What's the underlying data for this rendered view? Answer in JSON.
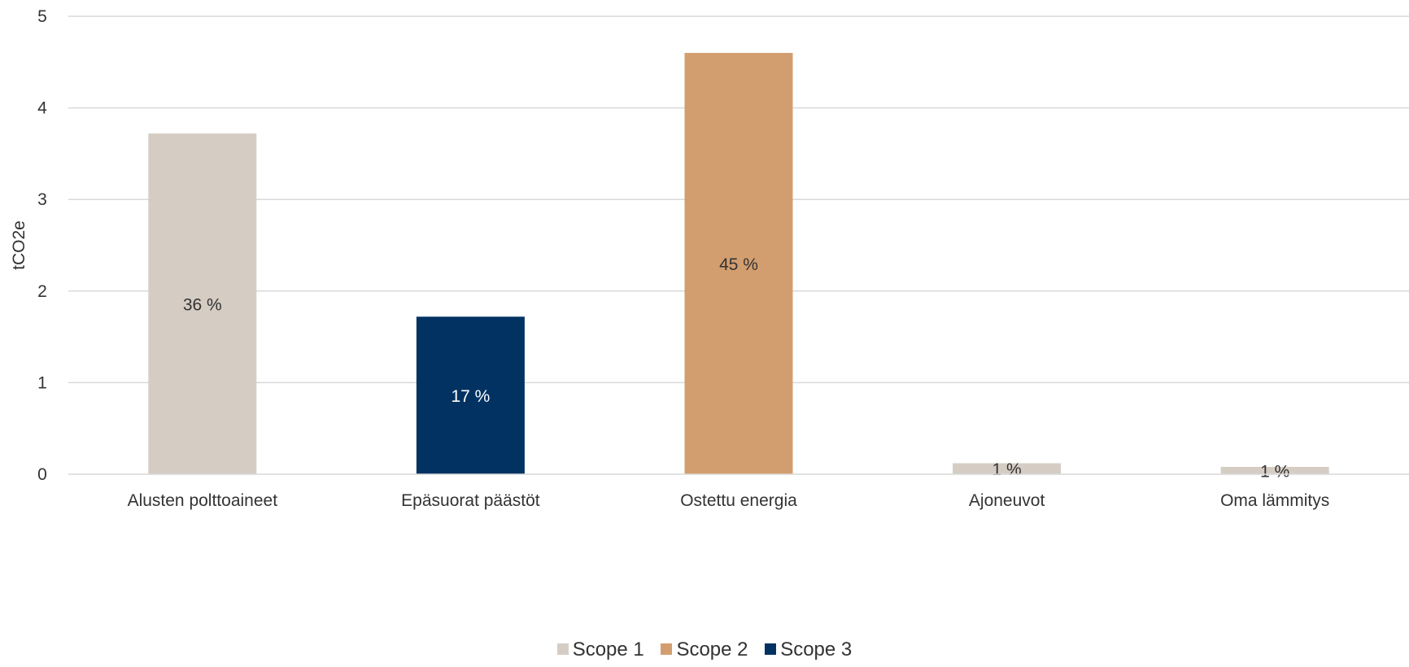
{
  "chart_data": {
    "type": "bar",
    "ylabel": "tCO2e",
    "ylim": [
      0,
      5
    ],
    "yticks": [
      "0",
      "1",
      "2",
      "3",
      "4",
      "5"
    ],
    "grid": true,
    "legend_position": "bottom",
    "categories": [
      "Alusten polttoaineet",
      "Epäsuorat päästöt",
      "Ostettu energia",
      "Ajoneuvot",
      "Oma lämmitys"
    ],
    "values": [
      3.72,
      1.72,
      4.6,
      0.12,
      0.08
    ],
    "data_labels": [
      "36 %",
      "17 %",
      "45 %",
      "1 %",
      "1 %"
    ],
    "bar_scope": [
      "Scope 1",
      "Scope 3",
      "Scope 2",
      "Scope 1",
      "Scope 1"
    ],
    "legend": [
      {
        "name": "Scope 1",
        "color": "#d5cdc4"
      },
      {
        "name": "Scope 2",
        "color": "#d39e6f"
      },
      {
        "name": "Scope 3",
        "color": "#023262"
      }
    ],
    "label_colors": {
      "Scope 1": "#333333",
      "Scope 2": "#333333",
      "Scope 3": "#ffffff"
    }
  }
}
